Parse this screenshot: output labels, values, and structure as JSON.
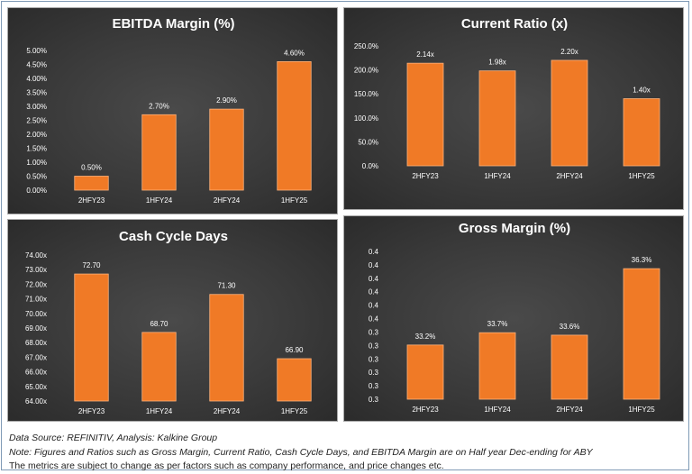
{
  "colors": {
    "bar": "#f07a26",
    "bar_edge": "#ffb27a",
    "grid": "#5a5a5a",
    "text": "#ffffff",
    "footnote": "#1f1f1f"
  },
  "chart_data": [
    {
      "type": "bar",
      "title": "EBITDA Margin (%)",
      "categories": [
        "2HFY23",
        "1HFY24",
        "2HFY24",
        "1HFY25"
      ],
      "values": [
        0.5,
        2.7,
        2.9,
        4.6
      ],
      "data_labels": [
        "0.50%",
        "2.70%",
        "2.90%",
        "4.60%"
      ],
      "ylim": [
        0,
        5
      ],
      "y_ticks": [
        "0.00%",
        "0.50%",
        "1.00%",
        "1.50%",
        "2.00%",
        "2.50%",
        "3.00%",
        "3.50%",
        "4.00%",
        "4.50%",
        "5.00%"
      ],
      "grid": false
    },
    {
      "type": "bar",
      "title": "Current Ratio (x)",
      "categories": [
        "2HFY23",
        "1HFY24",
        "2HFY24",
        "1HFY25"
      ],
      "values": [
        2.14,
        1.98,
        2.2,
        1.4
      ],
      "data_labels": [
        "2.14x",
        "1.98x",
        "2.20x",
        "1.40x"
      ],
      "ylim": [
        0,
        2.5
      ],
      "y_ticks": [
        "0.0%",
        "50.0%",
        "100.0%",
        "150.0%",
        "200.0%",
        "250.0%"
      ],
      "grid": false
    },
    {
      "type": "bar",
      "title": "Cash Cycle Days",
      "categories": [
        "2HFY23",
        "1HFY24",
        "2HFY24",
        "1HFY25"
      ],
      "values": [
        72.7,
        68.7,
        71.3,
        66.9
      ],
      "data_labels": [
        "72.70",
        "68.70",
        "71.30",
        "66.90"
      ],
      "ylim": [
        64,
        74
      ],
      "y_ticks": [
        "64.00x",
        "65.00x",
        "66.00x",
        "67.00x",
        "68.00x",
        "69.00x",
        "70.00x",
        "71.00x",
        "72.00x",
        "73.00x",
        "74.00x"
      ],
      "grid": false
    },
    {
      "type": "bar",
      "title": "Gross Margin (%)",
      "categories": [
        "2HFY23",
        "1HFY24",
        "2HFY24",
        "1HFY25"
      ],
      "values": [
        33.2,
        33.7,
        33.6,
        36.3
      ],
      "data_labels": [
        "33.2%",
        "33.7%",
        "33.6%",
        "36.3%"
      ],
      "ylim": [
        31,
        37
      ],
      "y_ticks": [
        "0.3",
        "0.3",
        "0.3",
        "0.3",
        "0.3",
        "0.3",
        "0.4",
        "0.4",
        "0.4",
        "0.4",
        "0.4",
        "0.4"
      ],
      "grid": false
    }
  ],
  "footnotes": {
    "source": "Data Source: REFINITIV, Analysis: Kalkine Group",
    "note": "Note: Figures and Ratios such as Gross Margin, Current Ratio, Cash Cycle Days, and EBITDA Margin are on Half year Dec-ending for ABY",
    "disclaimer": "The metrics are subject to change as per factors such as company performance, and price changes etc."
  }
}
